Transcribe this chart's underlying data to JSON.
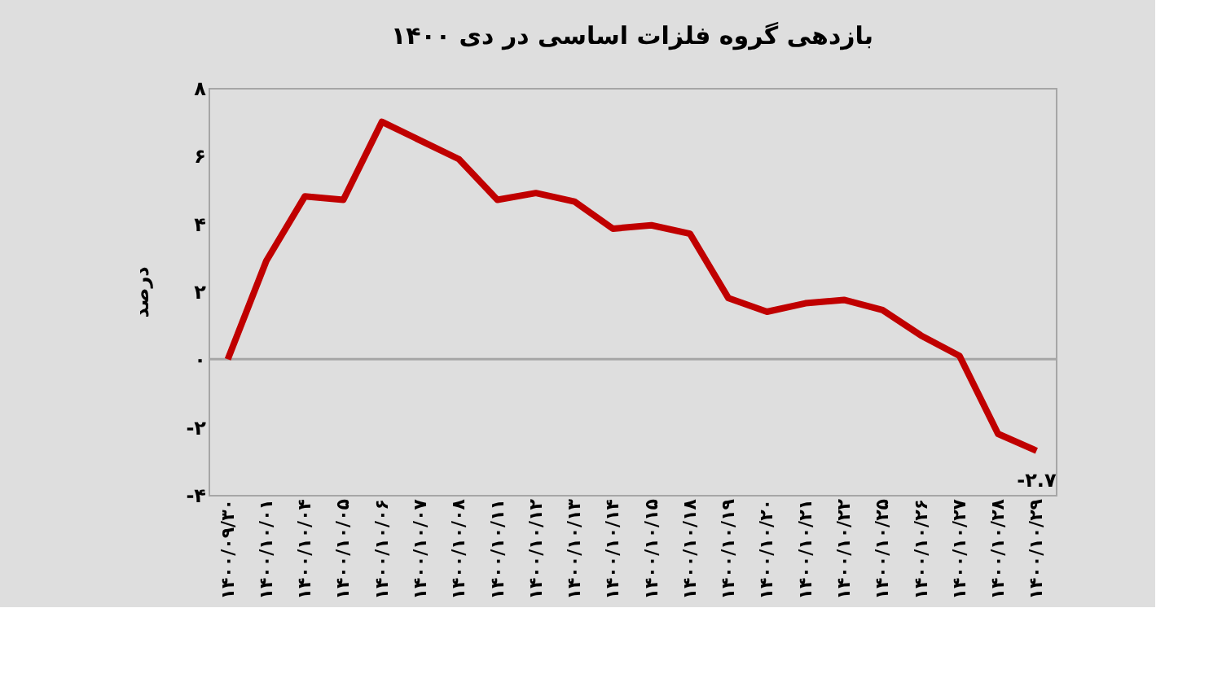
{
  "chart_data": {
    "type": "line",
    "title": "بازدهی گروه فلزات اساسی در دی ۱۴۰۰",
    "ylabel": "درصد",
    "categories": [
      "۱۴۰۰/۰۹/۳۰",
      "۱۴۰۰/۱۰/۰۱",
      "۱۴۰۰/۱۰/۰۴",
      "۱۴۰۰/۱۰/۰۵",
      "۱۴۰۰/۱۰/۰۶",
      "۱۴۰۰/۱۰/۰۷",
      "۱۴۰۰/۱۰/۰۸",
      "۱۴۰۰/۱۰/۱۱",
      "۱۴۰۰/۱۰/۱۲",
      "۱۴۰۰/۱۰/۱۳",
      "۱۴۰۰/۱۰/۱۴",
      "۱۴۰۰/۱۰/۱۵",
      "۱۴۰۰/۱۰/۱۸",
      "۱۴۰۰/۱۰/۱۹",
      "۱۴۰۰/۱۰/۲۰",
      "۱۴۰۰/۱۰/۲۱",
      "۱۴۰۰/۱۰/۲۲",
      "۱۴۰۰/۱۰/۲۵",
      "۱۴۰۰/۱۰/۲۶",
      "۱۴۰۰/۱۰/۲۷",
      "۱۴۰۰/۱۰/۲۸",
      "۱۴۰۰/۱۰/۲۹"
    ],
    "series": [
      {
        "color": "#c00000",
        "values": [
          0,
          2.9,
          4.8,
          4.7,
          7.0,
          6.45,
          5.9,
          4.7,
          4.9,
          4.65,
          3.85,
          3.95,
          3.7,
          1.8,
          1.4,
          1.65,
          1.75,
          1.45,
          0.7,
          0.1,
          -2.2,
          -2.7
        ],
        "value_labels": [
          null,
          null,
          null,
          null,
          null,
          null,
          null,
          null,
          null,
          null,
          null,
          null,
          null,
          null,
          null,
          null,
          null,
          null,
          null,
          null,
          null,
          "-۲.۷"
        ]
      }
    ],
    "ylim": [
      -4,
      8
    ],
    "yticks": [
      {
        "value": -4,
        "label": "-۴"
      },
      {
        "value": -2,
        "label": "-۲"
      },
      {
        "value": 0,
        "label": "۰"
      },
      {
        "value": 2,
        "label": "۲"
      },
      {
        "value": 4,
        "label": "۴"
      },
      {
        "value": 6,
        "label": "۶"
      },
      {
        "value": 8,
        "label": "۸"
      }
    ],
    "ref_lines": [
      {
        "axis": "y",
        "value": 0,
        "color": "#a6a6a6"
      }
    ],
    "grid": false,
    "marker": "none",
    "line_style": "solid"
  }
}
